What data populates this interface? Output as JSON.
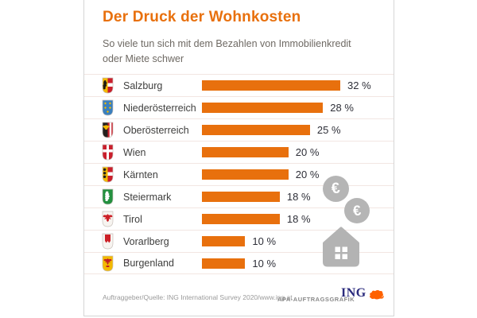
{
  "card": {
    "title": "Der Druck der Wohnkosten",
    "subtitle": "So viele tun sich mit dem Bezahlen von Immobilienkredit oder Miete schwer"
  },
  "chart_data": {
    "type": "bar",
    "orientation": "horizontal",
    "title": "Der Druck der Wohnkosten",
    "subtitle": "So viele tun sich mit dem Bezahlen von Immobilienkredit oder Miete schwer",
    "unit": "%",
    "xlim": [
      0,
      32
    ],
    "grid": false,
    "legend": false,
    "bar_color": "#e8700d",
    "categories": [
      "Salzburg",
      "Niederösterreich",
      "Oberösterreich",
      "Wien",
      "Kärnten",
      "Steiermark",
      "Tirol",
      "Vorarlberg",
      "Burgenland"
    ],
    "values": [
      32,
      28,
      25,
      20,
      20,
      18,
      18,
      10,
      10
    ],
    "value_labels": [
      "32 %",
      "28 %",
      "25 %",
      "20 %",
      "20 %",
      "18 %",
      "18 %",
      "10 %",
      "10 %"
    ],
    "icons": [
      "shield-salzburg",
      "shield-niederoesterreich",
      "shield-oberoesterreich",
      "shield-wien",
      "shield-kaernten",
      "shield-steiermark",
      "shield-tirol",
      "shield-vorarlberg",
      "shield-burgenland"
    ]
  },
  "decorations": {
    "euro_symbol": "€",
    "icons": [
      "euro-coin-icon",
      "euro-coin-icon",
      "house-icon"
    ]
  },
  "footer": {
    "source": "Auftraggeber/Quelle: ING International Survey 2020/www.ing.at",
    "credit": "APA-AUFTRAGSGRAFIK",
    "logo_text": "ING"
  },
  "colors": {
    "accent_orange": "#e8700d",
    "subtitle_gray": "#6e6963",
    "decoration_gray": "#b5b5b5",
    "separator": "#f2e6e2",
    "logo_navy": "#2a2a7c",
    "logo_lion_orange": "#ff6200"
  }
}
